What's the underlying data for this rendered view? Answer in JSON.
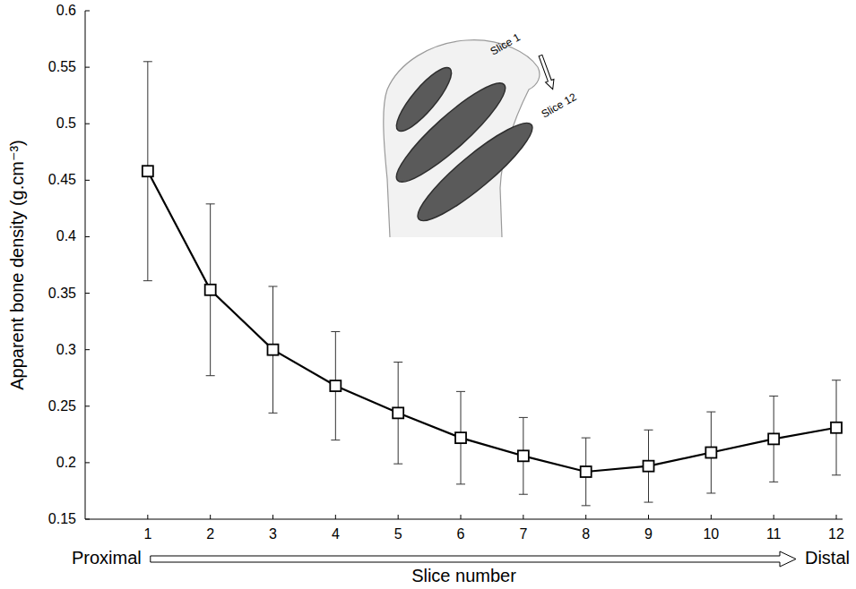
{
  "chart_data": {
    "type": "line",
    "x": [
      1,
      2,
      3,
      4,
      5,
      6,
      7,
      8,
      9,
      10,
      11,
      12
    ],
    "series": [
      {
        "color": "#000000",
        "marker": "square",
        "values": [
          0.458,
          0.353,
          0.3,
          0.268,
          0.244,
          0.222,
          0.206,
          0.192,
          0.197,
          0.209,
          0.221,
          0.231
        ],
        "errors": [
          0.097,
          0.076,
          0.056,
          0.048,
          0.045,
          0.041,
          0.034,
          0.03,
          0.032,
          0.036,
          0.038,
          0.042
        ]
      }
    ],
    "xlabel": "Slice number",
    "ylabel": "Apparent bone density (g.cm⁻³)",
    "xlim": [
      0,
      12.1
    ],
    "ylim": [
      0.15,
      0.6
    ],
    "xticks": [
      1,
      2,
      3,
      4,
      5,
      6,
      7,
      8,
      9,
      10,
      11,
      12
    ],
    "yticks": [
      0.15,
      0.2,
      0.25,
      0.3,
      0.35,
      0.4,
      0.45,
      0.5,
      0.55,
      0.6
    ],
    "grid": false,
    "annotations": [
      "Proximal",
      "Distal",
      "Slice 1",
      "Slice 12"
    ]
  }
}
